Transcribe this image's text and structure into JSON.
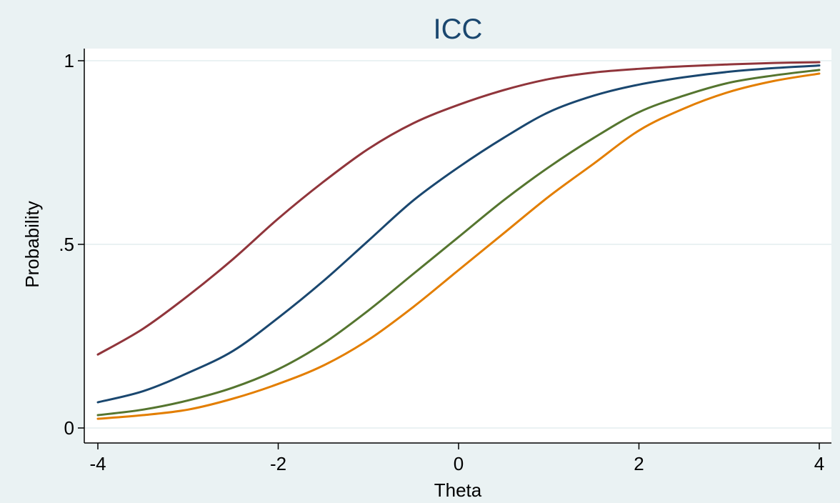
{
  "chart_data": {
    "type": "line",
    "title": "ICC",
    "xlabel": "Theta",
    "ylabel": "Probability",
    "xlim": [
      -4,
      4
    ],
    "ylim": [
      0,
      1
    ],
    "xticks": [
      -4,
      -2,
      0,
      2,
      4
    ],
    "xtick_labels": [
      "-4",
      "-2",
      "0",
      "2",
      "4"
    ],
    "yticks": [
      0,
      0.5,
      1
    ],
    "ytick_labels": [
      "0",
      ".5",
      "1"
    ],
    "grid": "horizontal",
    "legend": "none",
    "x": [
      -4,
      -3.5,
      -3,
      -2.5,
      -2,
      -1.5,
      -1,
      -0.5,
      0,
      0.5,
      1,
      1.5,
      2,
      2.5,
      3,
      3.5,
      4
    ],
    "series": [
      {
        "color": "#90353b",
        "values": [
          0.2,
          0.27,
          0.36,
          0.46,
          0.57,
          0.67,
          0.76,
          0.83,
          0.88,
          0.92,
          0.95,
          0.968,
          0.978,
          0.985,
          0.99,
          0.994,
          0.996
        ]
      },
      {
        "color": "#1a476f",
        "values": [
          0.07,
          0.1,
          0.15,
          0.21,
          0.3,
          0.4,
          0.51,
          0.62,
          0.71,
          0.79,
          0.86,
          0.905,
          0.935,
          0.955,
          0.97,
          0.98,
          0.987
        ]
      },
      {
        "color": "#55752f",
        "values": [
          0.035,
          0.05,
          0.075,
          0.11,
          0.16,
          0.23,
          0.32,
          0.42,
          0.52,
          0.62,
          0.71,
          0.79,
          0.86,
          0.905,
          0.94,
          0.96,
          0.975
        ]
      },
      {
        "color": "#e37e00",
        "values": [
          0.025,
          0.035,
          0.05,
          0.08,
          0.12,
          0.17,
          0.24,
          0.33,
          0.43,
          0.53,
          0.63,
          0.72,
          0.81,
          0.87,
          0.915,
          0.945,
          0.965
        ]
      }
    ],
    "colors": {
      "background": "#eaf2f3",
      "plot_area": "#ffffff",
      "grid": "#eaf2f3",
      "title": "#1a476f"
    }
  }
}
